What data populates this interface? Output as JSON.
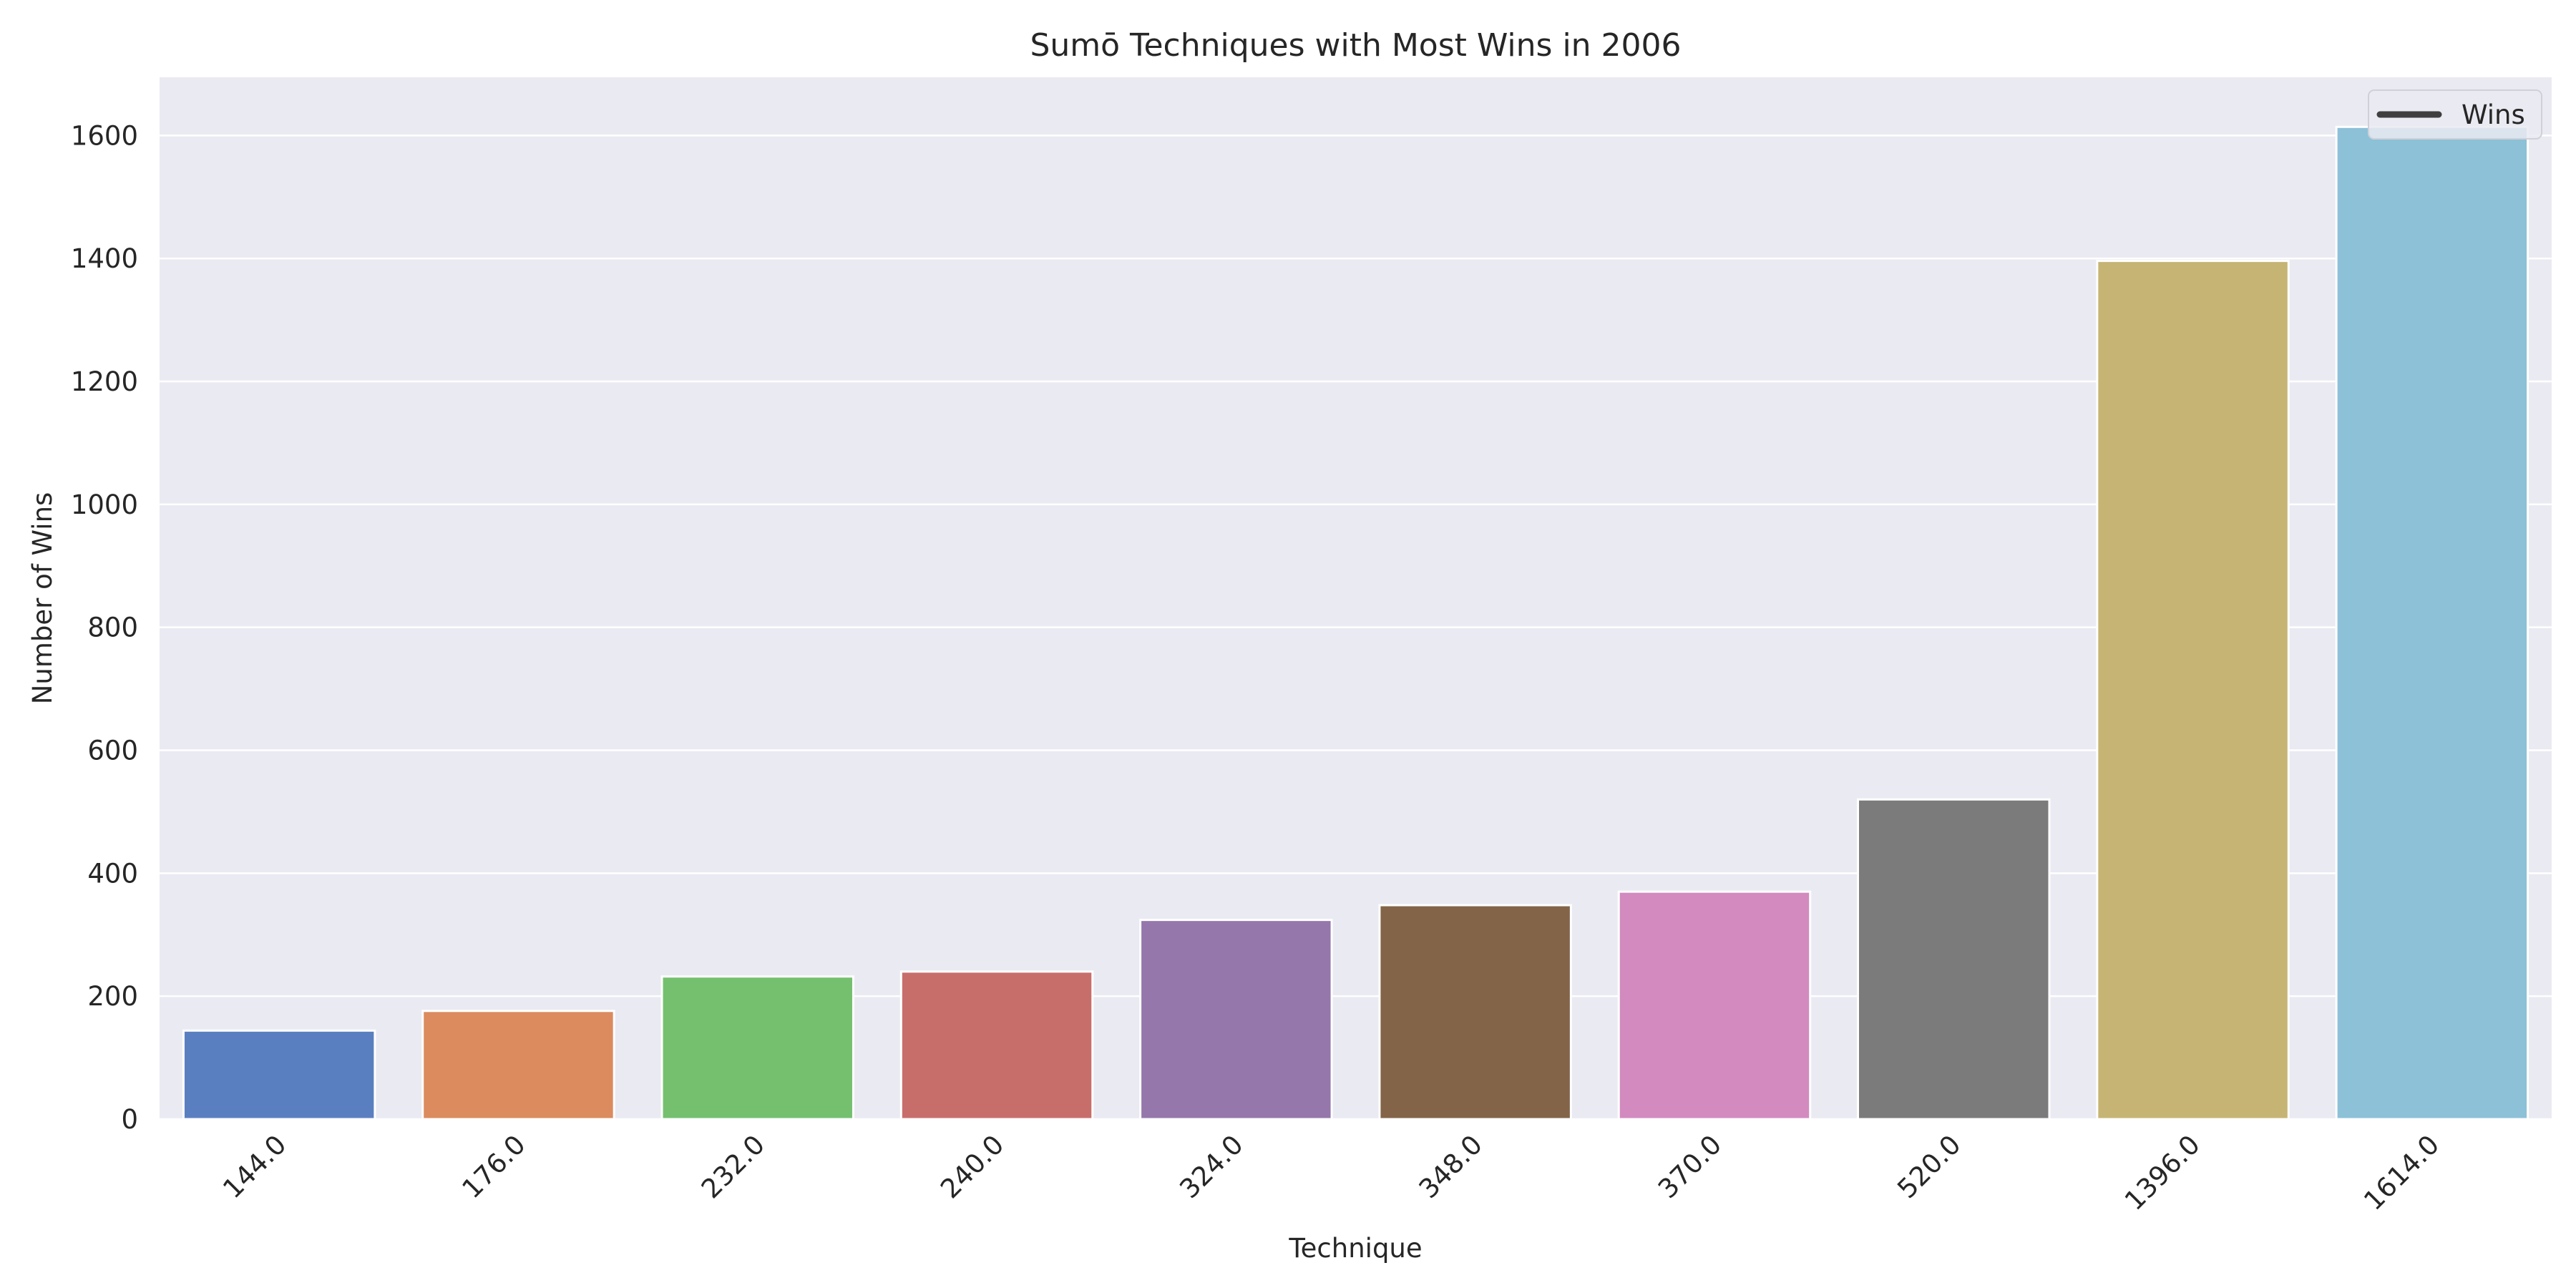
{
  "chart_data": {
    "type": "bar",
    "title": "Sumō Techniques with Most Wins in 2006",
    "xlabel": "Technique",
    "ylabel": "Number of Wins",
    "categories": [
      "144.0",
      "176.0",
      "232.0",
      "240.0",
      "324.0",
      "348.0",
      "370.0",
      "520.0",
      "1396.0",
      "1614.0"
    ],
    "series": [
      {
        "name": "Wins",
        "values": [
          144,
          176,
          232,
          240,
          324,
          348,
          370,
          520,
          1396,
          1614
        ]
      }
    ],
    "yticks": [
      0,
      200,
      400,
      600,
      800,
      1000,
      1200,
      1400,
      1600
    ],
    "ylim": [
      0,
      1694.7
    ],
    "grid": true,
    "legend_position": "top-right",
    "colors": [
      "#5a7fc0",
      "#db8b5e",
      "#74c06f",
      "#c76e6b",
      "#9577ab",
      "#836449",
      "#d28abf",
      "#7b7b7b",
      "#c6b474",
      "#8cc1d8"
    ],
    "background_color": "#eaeaf2",
    "legend_line_color": "#3f3f3f"
  }
}
